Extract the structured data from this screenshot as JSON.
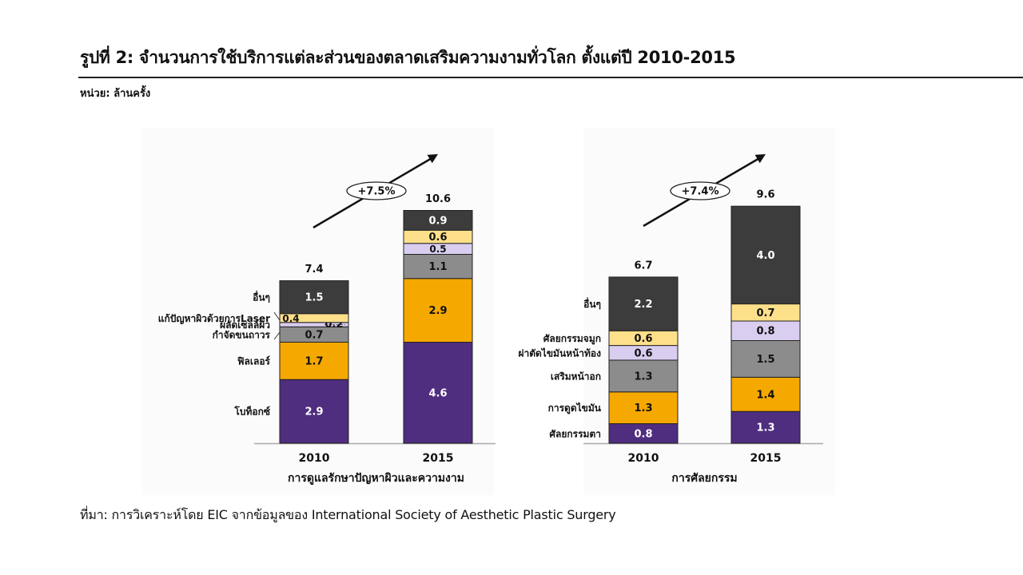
{
  "header": {
    "title": "รูปที่ 2: จำนวนการใช้บริการแต่ละส่วนของตลาดเสริมความงามทั่วโลก ตั้งแต่ปี 2010-2015",
    "unit": "หน่วย: ล้านครั้ง"
  },
  "footer": {
    "source": "ที่มา: การวิเคราะห์โดย EIC จากข้อมูลของ International Society of Aesthetic Plastic Surgery"
  },
  "colors": {
    "purple": "#4f2d7f",
    "orange": "#f5a800",
    "gray": "#8c8c8c",
    "lavender": "#d9cdf0",
    "yellow": "#ffe08a",
    "dark": "#3c3c3c",
    "axis": "#aaaaaa"
  },
  "chart_data": [
    {
      "type": "bar",
      "stacked": true,
      "xlabel": "การดูแลรักษาปัญหาผิวและความงาม",
      "categories": [
        "2010",
        "2015"
      ],
      "totals": [
        "7.4",
        "10.6"
      ],
      "growth": "+7.5%",
      "series": [
        {
          "name": "โบท็อกซ์",
          "values": [
            2.9,
            4.6
          ],
          "labels": [
            "2.9",
            "4.6"
          ],
          "color": "purple",
          "text": "light"
        },
        {
          "name": "ฟิลเลอร์",
          "values": [
            1.7,
            2.9
          ],
          "labels": [
            "1.7",
            "2.9"
          ],
          "color": "orange",
          "text": "dark"
        },
        {
          "name": "กำจัดขนถาวร",
          "values": [
            0.7,
            1.1
          ],
          "labels": [
            "0.7",
            "1.1"
          ],
          "color": "gray",
          "text": "dark"
        },
        {
          "name": "ผลัดเซลล์ผิว",
          "values": [
            0.2,
            0.5
          ],
          "labels": [
            "0.2",
            "0.5"
          ],
          "color": "lavender",
          "text": "dark",
          "callout": [
            0
          ]
        },
        {
          "name": "แก้ปัญหาผิวด้วยการLaser",
          "values": [
            0.4,
            0.6
          ],
          "labels": [
            "0.4",
            "0.6"
          ],
          "color": "yellow",
          "text": "dark"
        },
        {
          "name": "อื่นๆ",
          "values": [
            1.5,
            0.9
          ],
          "labels": [
            "1.5",
            "0.9"
          ],
          "color": "dark",
          "text": "light"
        }
      ]
    },
    {
      "type": "bar",
      "stacked": true,
      "xlabel": "การศัลยกรรม",
      "categories": [
        "2010",
        "2015"
      ],
      "totals": [
        "6.7",
        "9.6"
      ],
      "growth": "+7.4%",
      "series": [
        {
          "name": "ศัลยกรรมตา",
          "values": [
            0.8,
            1.3
          ],
          "labels": [
            "0.8",
            "1.3"
          ],
          "color": "purple",
          "text": "light"
        },
        {
          "name": "การดูดไขมัน",
          "values": [
            1.3,
            1.4
          ],
          "labels": [
            "1.3",
            "1.4"
          ],
          "color": "orange",
          "text": "dark"
        },
        {
          "name": "เสริมหน้าอก",
          "values": [
            1.3,
            1.5
          ],
          "labels": [
            "1.3",
            "1.5"
          ],
          "color": "gray",
          "text": "dark"
        },
        {
          "name": "ผ่าตัดไขมันหน้าท้อง",
          "values": [
            0.6,
            0.8
          ],
          "labels": [
            "0.6",
            "0.8"
          ],
          "color": "lavender",
          "text": "dark"
        },
        {
          "name": "ศัลยกรรมจมูก",
          "values": [
            0.6,
            0.7
          ],
          "labels": [
            "0.6",
            "0.7"
          ],
          "color": "yellow",
          "text": "dark"
        },
        {
          "name": "อื่นๆ",
          "values": [
            2.2,
            4.0
          ],
          "labels": [
            "2.2",
            "4.0"
          ],
          "color": "dark",
          "text": "light"
        }
      ]
    }
  ]
}
